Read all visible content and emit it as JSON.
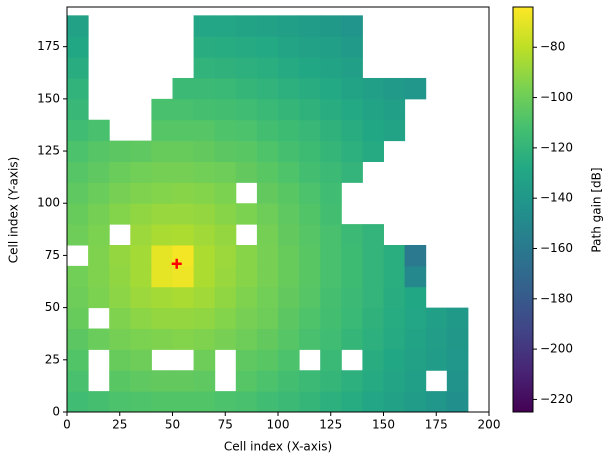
{
  "chart_data": {
    "type": "heatmap",
    "x_label": "Cell index (X-axis)",
    "y_label": "Cell index (Y-axis)",
    "colorbar_label": "Path gain [dB]",
    "colormap": "viridis",
    "xlim": [
      0,
      200
    ],
    "ylim": [
      0,
      194
    ],
    "clim": [
      -225,
      -64
    ],
    "xticks": [
      0,
      25,
      50,
      75,
      100,
      125,
      150,
      175,
      200
    ],
    "yticks": [
      0,
      25,
      50,
      75,
      100,
      125,
      150,
      175
    ],
    "cticks": [
      {
        "value": -80,
        "label": "−80"
      },
      {
        "value": -100,
        "label": "−100"
      },
      {
        "value": -120,
        "label": "−120"
      },
      {
        "value": -140,
        "label": "−140"
      },
      {
        "value": -160,
        "label": "−160"
      },
      {
        "value": -180,
        "label": "−180"
      },
      {
        "value": -200,
        "label": "−200"
      },
      {
        "value": -220,
        "label": "−220"
      }
    ],
    "x": [
      5,
      15,
      25,
      35,
      45,
      55,
      65,
      75,
      85,
      95,
      105,
      115,
      125,
      135,
      145,
      155,
      165,
      175,
      185,
      195
    ],
    "y": [
      5,
      15,
      25,
      35,
      45,
      55,
      65,
      75,
      85,
      95,
      105,
      115,
      125,
      135,
      145,
      155,
      165,
      175,
      185
    ],
    "values": [
      [
        -114,
        -112,
        -110,
        -109,
        -108,
        -108,
        -108,
        -110,
        -111,
        -114,
        -116,
        -119,
        -123,
        -126,
        -130,
        -133,
        -137,
        -141,
        -145,
        null
      ],
      [
        -111,
        null,
        -106,
        -104,
        -103,
        -103,
        -104,
        null,
        -107,
        -110,
        -113,
        -116,
        -119,
        -123,
        -127,
        -131,
        -135,
        null,
        -143,
        null
      ],
      [
        -108,
        null,
        -102,
        -100,
        null,
        null,
        -100,
        null,
        -104,
        -106,
        -110,
        null,
        -117,
        null,
        -125,
        -129,
        -133,
        -137,
        -141,
        null
      ],
      [
        -105,
        -101,
        -98,
        -96,
        -95,
        -94,
        -95,
        -97,
        -100,
        -103,
        -107,
        -111,
        -114,
        -119,
        -123,
        -127,
        -132,
        -136,
        -140,
        null
      ],
      [
        -102,
        null,
        -95,
        -92,
        -90,
        -90,
        -91,
        -94,
        -97,
        -100,
        -105,
        -109,
        -113,
        -117,
        -122,
        -126,
        -130,
        -135,
        -139,
        null
      ],
      [
        -100,
        -96,
        -92,
        -88,
        -86,
        -85,
        -87,
        -91,
        -95,
        -99,
        -103,
        -107,
        -112,
        -116,
        -120,
        -125,
        -129,
        null,
        null,
        null
      ],
      [
        -99,
        -95,
        -91,
        -86,
        -70,
        -68,
        -84,
        -89,
        -93,
        -97,
        -102,
        -106,
        -111,
        -115,
        -120,
        -124,
        -150,
        null,
        null,
        null
      ],
      [
        null,
        -95,
        -90,
        -86,
        -70,
        -66,
        -84,
        -88,
        -93,
        -97,
        -102,
        -106,
        -111,
        -115,
        -120,
        -124,
        -160,
        null,
        null,
        null
      ],
      [
        -100,
        -96,
        null,
        -88,
        -85,
        -84,
        -87,
        -90,
        null,
        -98,
        -103,
        -107,
        -111,
        -116,
        -120,
        null,
        null,
        null,
        null,
        null
      ],
      [
        -102,
        -98,
        -94,
        -91,
        -89,
        -89,
        -90,
        -93,
        -96,
        -100,
        -104,
        -108,
        -113,
        null,
        null,
        null,
        null,
        null,
        null,
        null
      ],
      [
        -104,
        -101,
        -97,
        -95,
        -94,
        -93,
        -94,
        -96,
        null,
        -103,
        -106,
        -110,
        -114,
        null,
        null,
        null,
        null,
        null,
        null,
        null
      ],
      [
        -107,
        -104,
        -101,
        -99,
        -98,
        -98,
        -99,
        -100,
        -103,
        -106,
        -109,
        -113,
        -116,
        -120,
        null,
        null,
        null,
        null,
        null,
        null
      ],
      [
        -110,
        -107,
        -105,
        -104,
        -102,
        -102,
        -103,
        -105,
        -106,
        -109,
        -112,
        -115,
        -119,
        -123,
        -127,
        null,
        null,
        null,
        null,
        null
      ],
      [
        -114,
        -111,
        null,
        null,
        -107,
        -107,
        -107,
        -109,
        -110,
        -113,
        -115,
        -118,
        -122,
        -125,
        -129,
        -132,
        null,
        null,
        null,
        null
      ],
      [
        -118,
        null,
        null,
        null,
        -111,
        -111,
        -112,
        -113,
        -114,
        -117,
        -119,
        -122,
        -125,
        -128,
        -132,
        -135,
        null,
        null,
        null,
        null
      ],
      [
        -121,
        null,
        null,
        null,
        null,
        -116,
        -116,
        -117,
        -119,
        -121,
        -123,
        -125,
        -128,
        -132,
        -135,
        -138,
        -141,
        null,
        null,
        null
      ],
      [
        -125,
        null,
        null,
        null,
        null,
        null,
        -121,
        -122,
        -123,
        -124,
        -127,
        -129,
        -132,
        -134,
        null,
        null,
        null,
        null,
        null,
        null
      ],
      [
        -129,
        null,
        null,
        null,
        null,
        null,
        -125,
        -126,
        -127,
        -128,
        -131,
        -133,
        -135,
        -138,
        null,
        null,
        null,
        null,
        null,
        null
      ],
      [
        -133,
        null,
        null,
        null,
        null,
        null,
        -130,
        -130,
        -132,
        -133,
        -135,
        -137,
        -139,
        -142,
        null,
        null,
        null,
        null,
        null,
        null
      ]
    ],
    "marker": {
      "x": 52,
      "y": 71,
      "color": "#ff0000"
    }
  }
}
